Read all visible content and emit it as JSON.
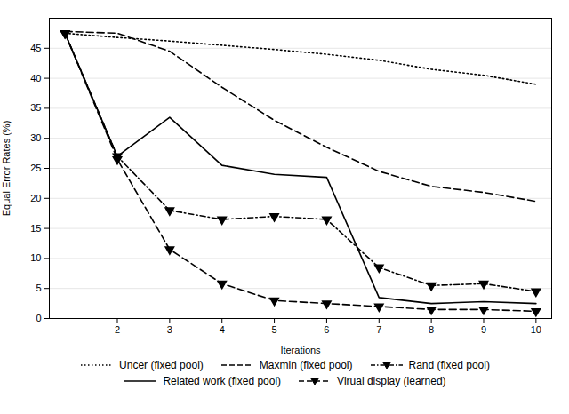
{
  "chart_data": {
    "type": "line",
    "xlabel": "Iterations",
    "ylabel": "Equal Error Rates (%)",
    "x": [
      1,
      2,
      3,
      4,
      5,
      6,
      7,
      8,
      9,
      10
    ],
    "series": [
      {
        "name": "Uncer (fixed pool)",
        "color": "#000000",
        "line_style": "dotted",
        "values": [
          47.5,
          46.8,
          46.2,
          45.5,
          44.8,
          44.0,
          43.0,
          41.5,
          40.5,
          39.0
        ]
      },
      {
        "name": "Maxmin (fixed pool)",
        "color": "#000000",
        "line_style": "dashed",
        "values": [
          47.8,
          47.5,
          44.5,
          38.5,
          33.0,
          28.5,
          24.5,
          22.0,
          21.0,
          19.5
        ]
      },
      {
        "name": "Rand (fixed pool)",
        "color": "#000000",
        "line_style": "dashdot",
        "marker": "triangle-down",
        "values": [
          47.5,
          27.0,
          18.0,
          16.5,
          17.0,
          16.5,
          8.5,
          5.5,
          5.8,
          4.5
        ]
      },
      {
        "name": "Related work (fixed pool)",
        "color": "#000000",
        "line_style": "solid",
        "values": [
          47.5,
          27.0,
          33.5,
          25.5,
          24.0,
          23.5,
          3.5,
          2.5,
          2.8,
          2.5
        ]
      },
      {
        "name": "Virual display (learned)",
        "color": "#000000",
        "line_style": "dashed",
        "marker": "triangle-down",
        "values": [
          47.5,
          26.5,
          11.5,
          5.8,
          3.0,
          2.5,
          2.0,
          1.5,
          1.5,
          1.2
        ]
      }
    ],
    "xlim": [
      0.7,
      10.3
    ],
    "xticks": [
      2,
      3,
      4,
      5,
      6,
      7,
      8,
      9,
      10
    ],
    "ylim": [
      0,
      50
    ],
    "yticks": [
      0,
      5,
      10,
      15,
      20,
      25,
      30,
      35,
      40,
      45
    ],
    "grid": "y",
    "legend": "bottom"
  }
}
